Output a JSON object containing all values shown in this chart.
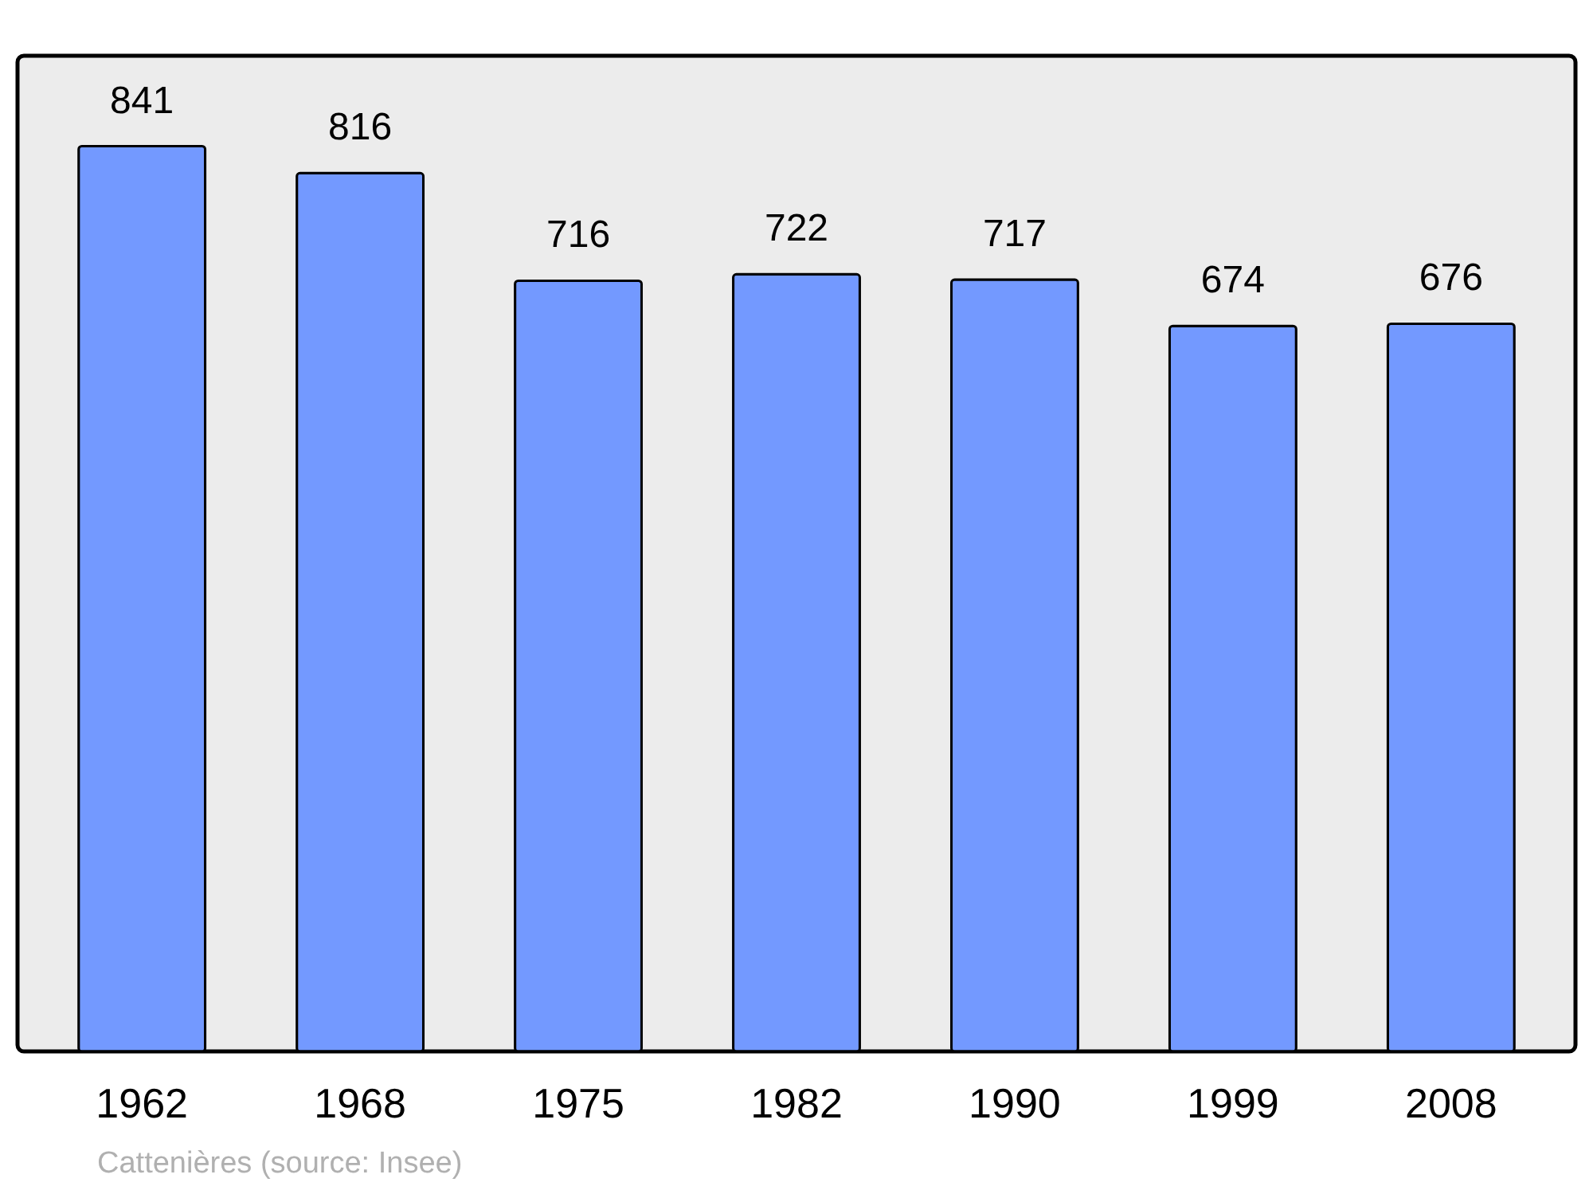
{
  "chart_data": {
    "type": "bar",
    "categories": [
      "1962",
      "1968",
      "1975",
      "1982",
      "1990",
      "1999",
      "2008"
    ],
    "values": [
      841,
      816,
      716,
      722,
      717,
      674,
      676
    ],
    "color": "#7399ff",
    "ylim": [
      0,
      925
    ],
    "data_labels": true,
    "tick_labels": "x",
    "annotations": [
      "Cattenières    (source: Insee)"
    ]
  }
}
